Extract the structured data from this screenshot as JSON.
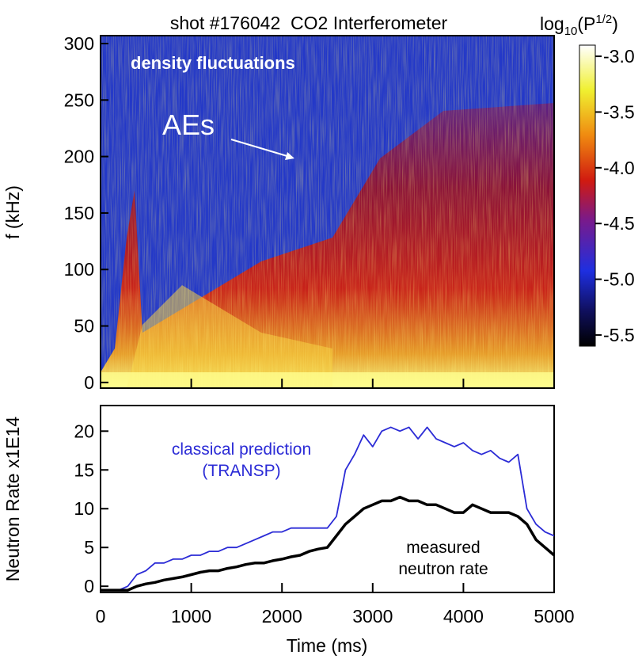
{
  "chart_data": [
    {
      "type": "heatmap",
      "title": "shot #176042  CO2 Interferometer",
      "ylabel": "f (kHz)",
      "ylim": [
        -5,
        307
      ],
      "yticks": [
        0,
        50,
        100,
        150,
        200,
        250,
        300
      ],
      "xlim": [
        0,
        5000
      ],
      "colorbar_label": {
        "base": "log",
        "sub": "10",
        "open": "(P",
        "sup": "1/2",
        "close": ")"
      },
      "clim": [
        -5.6,
        -2.9
      ],
      "cticks": [
        {
          "value": -3,
          "label": "-3.0"
        },
        {
          "value": -3.5,
          "label": "-3.5"
        },
        {
          "value": -4,
          "label": "-4.0"
        },
        {
          "value": -4.5,
          "label": "-4.5"
        },
        {
          "value": -5,
          "label": "-5.0"
        },
        {
          "value": -5.5,
          "label": "-5.5"
        }
      ],
      "annotations": [
        "density fluctuations",
        "AEs"
      ]
    },
    {
      "type": "line",
      "xlabel": "Time (ms)",
      "ylabel": "Neutron Rate x1E14",
      "xlim": [
        0,
        5000
      ],
      "xticks": [
        0,
        1000,
        2000,
        3000,
        4000,
        5000
      ],
      "ylim": [
        -0.8,
        23.3
      ],
      "yticks": [
        0,
        5,
        10,
        15,
        20
      ],
      "x": [
        0,
        100,
        200,
        300,
        400,
        500,
        600,
        700,
        800,
        900,
        1000,
        1100,
        1200,
        1300,
        1400,
        1500,
        1600,
        1700,
        1800,
        1900,
        2000,
        2100,
        2200,
        2300,
        2400,
        2500,
        2600,
        2700,
        2800,
        2900,
        3000,
        3100,
        3200,
        3300,
        3400,
        3500,
        3600,
        3700,
        3800,
        3900,
        4000,
        4100,
        4200,
        4300,
        4400,
        4500,
        4600,
        4700,
        4800,
        4900,
        5000
      ],
      "series": [
        {
          "label": [
            "classical prediction",
            "(TRANSP)"
          ],
          "color": "#2b2bd6",
          "values": [
            -0.5,
            -0.5,
            -0.5,
            0,
            1.5,
            2,
            3,
            3,
            3.5,
            3.5,
            4,
            4,
            4.5,
            4.5,
            5,
            5,
            5.5,
            6,
            6.5,
            7,
            7,
            7.5,
            7.5,
            7.5,
            7.5,
            7.5,
            9,
            15,
            17,
            19.5,
            18,
            20,
            20.5,
            20,
            20.5,
            19,
            20.5,
            19,
            18.5,
            18,
            18.5,
            17.5,
            17,
            17.5,
            16.5,
            16,
            17,
            10,
            8,
            7,
            6.5
          ]
        },
        {
          "label": [
            "measured",
            "neutron rate"
          ],
          "color": "#000000",
          "values": [
            -0.5,
            -0.5,
            -0.5,
            -0.5,
            0,
            0.3,
            0.5,
            0.8,
            1,
            1.2,
            1.5,
            1.8,
            2,
            2,
            2.3,
            2.5,
            2.8,
            3,
            3,
            3.3,
            3.5,
            3.8,
            4,
            4.5,
            4.8,
            5,
            6.5,
            8,
            9,
            10,
            10.5,
            11,
            11,
            11.5,
            11,
            11,
            10.5,
            10.5,
            10,
            9.5,
            9.5,
            10.5,
            10,
            9.5,
            9.5,
            9.5,
            9,
            8,
            6,
            5,
            4
          ]
        }
      ]
    }
  ]
}
